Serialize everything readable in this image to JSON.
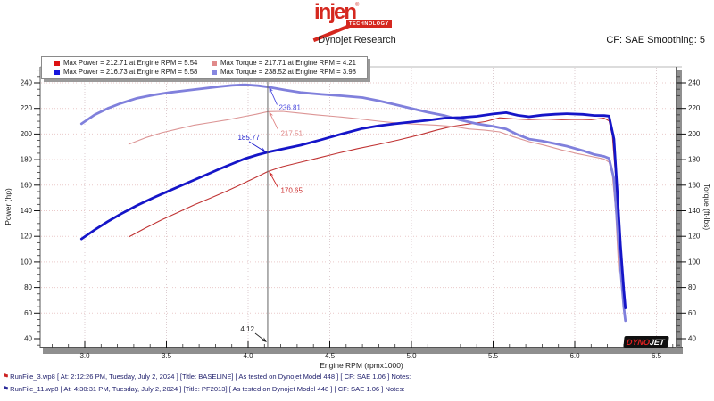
{
  "header": {
    "logo": {
      "brand": "injen",
      "sub": "TECHNOLOGY",
      "reg": "®"
    },
    "title": "Dynojet Research",
    "smoothing": "CF: SAE Smoothing: 5"
  },
  "legend": {
    "items": [
      {
        "swatch": "#dd1111",
        "label": "Max Power = 212.71 at Engine RPM = 5.54"
      },
      {
        "swatch": "#e08a8a",
        "label": "Max Torque = 217.71 at Engine RPM = 4.21"
      },
      {
        "swatch": "#1515dd",
        "label": "Max Power = 216.73 at Engine RPM = 5.58"
      },
      {
        "swatch": "#8787e0",
        "label": "Max Torque = 238.52 at Engine RPM = 3.98"
      }
    ]
  },
  "chart_data": {
    "type": "line",
    "title": "Dynojet Research",
    "xlabel": "Engine RPM (rpmx1000)",
    "ylabel_left": "Power (hp)",
    "ylabel_right": "Torque (ft-lbs)",
    "xlim": [
      2.73,
      6.63
    ],
    "ylim": [
      34,
      252
    ],
    "x_ticks": [
      3.0,
      3.5,
      4.0,
      4.5,
      5.0,
      5.5,
      6.0,
      6.5
    ],
    "y_ticks": [
      40,
      60,
      80,
      100,
      120,
      140,
      160,
      180,
      200,
      220,
      240
    ],
    "x_minor_step": 0.1,
    "y_minor_step": 5,
    "grid": true,
    "legend_position": "top-left",
    "series": [
      {
        "id": "baseline-power-curve",
        "name": "Baseline Power (RunFile_3, max 212.71 hp @ 5.54)",
        "color": "#c03333",
        "width": 1.1,
        "points": [
          [
            3.27,
            119.5
          ],
          [
            3.37,
            126.4
          ],
          [
            3.47,
            132.8
          ],
          [
            3.57,
            138.7
          ],
          [
            3.67,
            144.6
          ],
          [
            3.77,
            150
          ],
          [
            3.87,
            155.4
          ],
          [
            3.97,
            161.3
          ],
          [
            4.05,
            166.2
          ],
          [
            4.12,
            170.65
          ],
          [
            4.21,
            174.5
          ],
          [
            4.3,
            177.3
          ],
          [
            4.42,
            181
          ],
          [
            4.55,
            185
          ],
          [
            4.67,
            188.6
          ],
          [
            4.8,
            191.9
          ],
          [
            4.92,
            195.3
          ],
          [
            5.05,
            199.4
          ],
          [
            5.15,
            202.9
          ],
          [
            5.25,
            206
          ],
          [
            5.35,
            207.8
          ],
          [
            5.45,
            209.7
          ],
          [
            5.54,
            212.71
          ],
          [
            5.62,
            211.9
          ],
          [
            5.72,
            211.3
          ],
          [
            5.82,
            211.7
          ],
          [
            5.92,
            211.2
          ],
          [
            6.02,
            211.4
          ],
          [
            6.1,
            211.2
          ],
          [
            6.18,
            212.4
          ],
          [
            6.21,
            210.3
          ],
          [
            6.23,
            198.8
          ],
          [
            6.25,
            166.5
          ],
          [
            6.26,
            137
          ],
          [
            6.27,
            110
          ]
        ]
      },
      {
        "id": "baseline-torque-curve",
        "name": "Baseline Torque (RunFile_3, max 217.71 ft-lbs @ 4.21)",
        "color": "#dc9595",
        "width": 1.1,
        "points": [
          [
            3.27,
            192
          ],
          [
            3.37,
            197
          ],
          [
            3.47,
            201
          ],
          [
            3.57,
            204
          ],
          [
            3.67,
            207
          ],
          [
            3.77,
            209
          ],
          [
            3.87,
            211
          ],
          [
            3.97,
            213.5
          ],
          [
            4.05,
            215.5
          ],
          [
            4.12,
            217.51
          ],
          [
            4.21,
            217.71
          ],
          [
            4.3,
            216.5
          ],
          [
            4.42,
            215
          ],
          [
            4.55,
            213.5
          ],
          [
            4.67,
            212
          ],
          [
            4.8,
            210
          ],
          [
            4.92,
            208.5
          ],
          [
            5.05,
            207.5
          ],
          [
            5.15,
            207
          ],
          [
            5.25,
            206
          ],
          [
            5.35,
            204
          ],
          [
            5.45,
            203
          ],
          [
            5.54,
            201.7
          ],
          [
            5.62,
            198
          ],
          [
            5.72,
            194
          ],
          [
            5.82,
            191
          ],
          [
            5.92,
            187.5
          ],
          [
            6.02,
            184.5
          ],
          [
            6.1,
            182.5
          ],
          [
            6.18,
            180.5
          ],
          [
            6.21,
            178
          ],
          [
            6.23,
            168
          ],
          [
            6.25,
            140
          ],
          [
            6.26,
            115
          ],
          [
            6.27,
            92
          ]
        ]
      },
      {
        "id": "pf2013-torque-curve",
        "name": "PF2013 Torque (RunFile_11, max 238.52 ft-lbs @ 3.98)",
        "color": "#8080dc",
        "width": 2.8,
        "points": [
          [
            2.98,
            208
          ],
          [
            3.06,
            215
          ],
          [
            3.14,
            220
          ],
          [
            3.22,
            224
          ],
          [
            3.32,
            228
          ],
          [
            3.42,
            230.5
          ],
          [
            3.52,
            232.5
          ],
          [
            3.62,
            234
          ],
          [
            3.72,
            235.5
          ],
          [
            3.82,
            237
          ],
          [
            3.9,
            238
          ],
          [
            3.98,
            238.52
          ],
          [
            4.06,
            237.8
          ],
          [
            4.12,
            236.81
          ],
          [
            4.22,
            234.5
          ],
          [
            4.32,
            232.5
          ],
          [
            4.45,
            231
          ],
          [
            4.58,
            229.8
          ],
          [
            4.7,
            228.5
          ],
          [
            4.8,
            226
          ],
          [
            4.9,
            223
          ],
          [
            5.0,
            220
          ],
          [
            5.1,
            217
          ],
          [
            5.2,
            214.5
          ],
          [
            5.3,
            211
          ],
          [
            5.4,
            208
          ],
          [
            5.5,
            206
          ],
          [
            5.58,
            204
          ],
          [
            5.65,
            199.5
          ],
          [
            5.72,
            196
          ],
          [
            5.8,
            194.5
          ],
          [
            5.88,
            192.5
          ],
          [
            5.95,
            190.5
          ],
          [
            6.05,
            187
          ],
          [
            6.12,
            184
          ],
          [
            6.18,
            182.5
          ],
          [
            6.21,
            181
          ],
          [
            6.24,
            165
          ],
          [
            6.26,
            130
          ],
          [
            6.28,
            95
          ],
          [
            6.3,
            65
          ],
          [
            6.31,
            54
          ]
        ]
      },
      {
        "id": "pf2013-power-curve",
        "name": "PF2013 Power (RunFile_11, max 216.73 hp @ 5.58)",
        "color": "#1515c8",
        "width": 2.8,
        "points": [
          [
            2.98,
            118
          ],
          [
            3.06,
            125
          ],
          [
            3.14,
            131.5
          ],
          [
            3.22,
            137.4
          ],
          [
            3.32,
            144.2
          ],
          [
            3.42,
            150.2
          ],
          [
            3.52,
            155.8
          ],
          [
            3.62,
            161.3
          ],
          [
            3.72,
            166.8
          ],
          [
            3.82,
            172.4
          ],
          [
            3.9,
            176.6
          ],
          [
            3.98,
            180.7
          ],
          [
            4.06,
            183.8
          ],
          [
            4.12,
            185.77
          ],
          [
            4.22,
            188.5
          ],
          [
            4.32,
            191.2
          ],
          [
            4.45,
            195.6
          ],
          [
            4.58,
            200.3
          ],
          [
            4.7,
            204.3
          ],
          [
            4.8,
            206.5
          ],
          [
            4.9,
            208
          ],
          [
            5.0,
            209.4
          ],
          [
            5.1,
            210.7
          ],
          [
            5.2,
            212.4
          ],
          [
            5.3,
            212.9
          ],
          [
            5.4,
            213.9
          ],
          [
            5.5,
            215.7
          ],
          [
            5.58,
            216.73
          ],
          [
            5.65,
            214.6
          ],
          [
            5.72,
            213.5
          ],
          [
            5.8,
            214.8
          ],
          [
            5.88,
            215.5
          ],
          [
            5.95,
            215.9
          ],
          [
            6.05,
            215.4
          ],
          [
            6.12,
            214.5
          ],
          [
            6.18,
            214.4
          ],
          [
            6.21,
            214
          ],
          [
            6.24,
            196
          ],
          [
            6.26,
            155
          ],
          [
            6.28,
            113
          ],
          [
            6.3,
            78
          ],
          [
            6.31,
            64
          ]
        ]
      }
    ],
    "cursor": {
      "rpm": 4.12
    },
    "annotations": [
      {
        "label": "236.81",
        "rpm": 4.12,
        "value": 236.81,
        "color": "#4d4de0",
        "anchor": "start",
        "tip_dx": 1.5,
        "text_offset": [
          11,
          26
        ],
        "arrow_from": [
          9,
          20
        ]
      },
      {
        "label": "217.51",
        "rpm": 4.12,
        "value": 217.51,
        "color": "#e08585",
        "anchor": "start",
        "tip_dx": 1.5,
        "text_offset": [
          13,
          27
        ],
        "arrow_from": [
          10,
          20
        ]
      },
      {
        "label": "185.77",
        "rpm": 4.12,
        "value": 185.77,
        "color": "#1a1acc",
        "anchor": "end",
        "tip_dx": -2,
        "text_offset": [
          -7,
          -14
        ],
        "arrow_from": [
          -19,
          -12
        ]
      },
      {
        "label": "170.65",
        "rpm": 4.12,
        "value": 170.65,
        "color": "#cc2a2a",
        "anchor": "start",
        "tip_dx": 1.5,
        "text_offset": [
          13,
          24
        ],
        "arrow_from": [
          10,
          18
        ]
      },
      {
        "label": "4.12",
        "rpm": 4.12,
        "value": null,
        "color": "#222222",
        "anchor": "end",
        "tip_dx": -1,
        "text_offset": [
          -14,
          -12
        ],
        "arrow_from": [
          -13,
          -10
        ]
      }
    ]
  },
  "watermark": {
    "part1": "DYNO",
    "part2": "JET"
  },
  "footer": {
    "runs": [
      {
        "flag_color": "#cc2222",
        "file": "RunFile_3.wp8",
        "details": "[ At: 2:12:26 PM, Tuesday, July 2, 2024 ] [Title: BASELINE]  [ As tested on Dynojet Model 448 ] [ CF: SAE 1.06 ] Notes:"
      },
      {
        "flag_color": "#2a2a99",
        "file": "RunFile_11.wp8",
        "details": "[ At: 4:30:31 PM, Tuesday, July 2, 2024 ] [Title: PF2013]  [ As tested on Dynojet Model 448 ] [ CF: SAE 1.06 ] Notes:"
      }
    ]
  }
}
